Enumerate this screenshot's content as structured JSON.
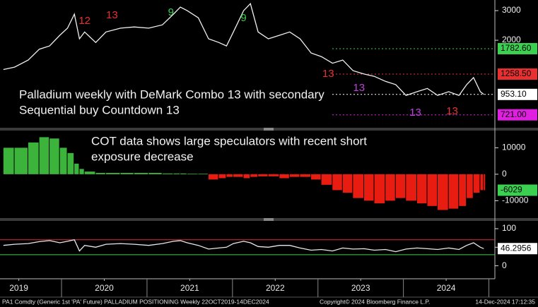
{
  "chart_data": [
    {
      "type": "line",
      "log_scale": true,
      "color": "#f0f0f0",
      "notes": [
        "Palladium weekly with DeMark Combo 13 with secondary",
        "Sequential buy Countdown 13"
      ],
      "x": [
        2019.32,
        2019.45,
        2019.61,
        2019.74,
        2019.86,
        2019.98,
        2020.07,
        2020.15,
        2020.21,
        2020.27,
        2020.4,
        2020.52,
        2020.69,
        2020.85,
        2021.02,
        2021.18,
        2021.31,
        2021.39,
        2021.47,
        2021.6,
        2021.72,
        2021.84,
        2021.93,
        2022.01,
        2022.13,
        2022.21,
        2022.3,
        2022.42,
        2022.55,
        2022.67,
        2022.79,
        2022.92,
        2023.04,
        2023.17,
        2023.29,
        2023.41,
        2023.54,
        2023.66,
        2023.79,
        2023.91,
        2024.03,
        2024.16,
        2024.28,
        2024.4,
        2024.53,
        2024.65,
        2024.74,
        2024.82,
        2024.9,
        2024.94
      ],
      "values": [
        1340,
        1385,
        1526,
        1770,
        1850,
        2140,
        2360,
        2860,
        2040,
        2240,
        1940,
        2240,
        2360,
        2400,
        2360,
        2470,
        2860,
        3150,
        3000,
        2720,
        2040,
        1940,
        1850,
        2240,
        3000,
        3300,
        2240,
        2040,
        2140,
        2240,
        2040,
        1680,
        1600,
        1460,
        1526,
        1320,
        1260,
        1220,
        1140,
        1090,
        940,
        990,
        1035,
        940,
        990,
        940,
        1090,
        1200,
        990,
        953.1
      ],
      "xlim": [
        2019.28,
        2025.07
      ],
      "ylim": [
        610,
        3470
      ],
      "yticks": [
        2000,
        3000
      ],
      "levels": [
        {
          "value": 1782.6,
          "label": "1782.60",
          "color": "#3cd050"
        },
        {
          "value": 1258.5,
          "label": "1258.50",
          "color": "#e83030"
        },
        {
          "value": 953.1,
          "label": "953.10",
          "color": "#ffffff"
        },
        {
          "value": 721,
          "label": "721.00",
          "color": "#e020e0"
        }
      ],
      "annotations": [
        {
          "text": "13",
          "x": 2020.59,
          "y": 2800,
          "color": "#e83030"
        },
        {
          "text": "12",
          "x": 2020.27,
          "y": 2596,
          "color": "#e83030"
        },
        {
          "text": "9",
          "x": 2021.28,
          "y": 2914,
          "color": "#3cd050"
        },
        {
          "text": "9",
          "x": 2022.13,
          "y": 2700,
          "color": "#3cd050"
        },
        {
          "text": "13",
          "x": 2023.12,
          "y": 1258,
          "color": "#e83030"
        },
        {
          "text": "13",
          "x": 2023.48,
          "y": 1038,
          "color": "#c040e0"
        },
        {
          "text": "13",
          "x": 2024.14,
          "y": 740,
          "color": "#c040e0"
        },
        {
          "text": "13",
          "x": 2024.57,
          "y": 755,
          "color": "#e83030"
        }
      ]
    },
    {
      "type": "bar",
      "pos_color": "#3cb43c",
      "neg_color": "#e81c10",
      "last_value_color": "#3cd050",
      "notes": [
        "COT data shows large speculators with recent short",
        "exposure decrease"
      ],
      "x": [
        2019.32,
        2019.45,
        2019.61,
        2019.74,
        2019.86,
        2019.98,
        2020.07,
        2020.15,
        2020.21,
        2020.27,
        2020.4,
        2020.52,
        2020.69,
        2020.85,
        2021.02,
        2021.18,
        2021.31,
        2021.39,
        2021.47,
        2021.6,
        2021.72,
        2021.84,
        2021.93,
        2022.01,
        2022.13,
        2022.21,
        2022.3,
        2022.42,
        2022.55,
        2022.67,
        2022.79,
        2022.92,
        2023.04,
        2023.17,
        2023.29,
        2023.41,
        2023.54,
        2023.66,
        2023.79,
        2023.91,
        2024.03,
        2024.16,
        2024.28,
        2024.4,
        2024.53,
        2024.65,
        2024.74,
        2024.82,
        2024.9,
        2024.94
      ],
      "values": [
        10000,
        10000,
        12000,
        14000,
        13500,
        10000,
        8000,
        4000,
        2000,
        1000,
        500,
        500,
        500,
        500,
        500,
        300,
        300,
        300,
        200,
        200,
        -2000,
        -1500,
        -1000,
        -1000,
        -1500,
        -1000,
        -800,
        -800,
        -1500,
        -1000,
        -1000,
        -2000,
        -4000,
        -6000,
        -7000,
        -9000,
        -10000,
        -11000,
        -10000,
        -9000,
        -10000,
        -11000,
        -12000,
        -13500,
        -13000,
        -12000,
        -9000,
        -7000,
        -6000,
        -6029
      ],
      "xlim": [
        2019.28,
        2025.07
      ],
      "ylim": [
        -16300,
        16500
      ],
      "yticks": [
        10000,
        0,
        -10000
      ]
    },
    {
      "type": "line",
      "color": "#e8e8e8",
      "last_value_color": "#ffffff",
      "x": [
        2019.32,
        2019.45,
        2019.61,
        2019.74,
        2019.86,
        2019.98,
        2020.07,
        2020.15,
        2020.21,
        2020.27,
        2020.4,
        2020.52,
        2020.69,
        2020.85,
        2021.02,
        2021.18,
        2021.31,
        2021.39,
        2021.47,
        2021.6,
        2021.72,
        2021.84,
        2021.93,
        2022.01,
        2022.13,
        2022.21,
        2022.3,
        2022.42,
        2022.55,
        2022.67,
        2022.79,
        2022.92,
        2023.04,
        2023.17,
        2023.29,
        2023.41,
        2023.54,
        2023.66,
        2023.79,
        2023.91,
        2024.03,
        2024.16,
        2024.28,
        2024.4,
        2024.53,
        2024.65,
        2024.74,
        2024.82,
        2024.9,
        2024.94
      ],
      "values": [
        55,
        58,
        60,
        65,
        68,
        62,
        66,
        70,
        40,
        55,
        50,
        58,
        60,
        58,
        55,
        60,
        66,
        68,
        62,
        55,
        45,
        48,
        50,
        60,
        66,
        62,
        52,
        50,
        55,
        55,
        48,
        42,
        44,
        40,
        48,
        45,
        46,
        42,
        44,
        38,
        45,
        48,
        46,
        44,
        48,
        44,
        55,
        62,
        50,
        46.2956
      ],
      "xlim": [
        2019.28,
        2025.07
      ],
      "ylim": [
        -35,
        121
      ],
      "yticks": [
        100,
        50,
        0
      ],
      "reference_lines": [
        {
          "value": 70,
          "color": "#e03030"
        },
        {
          "value": 30,
          "color": "#3cd050"
        }
      ],
      "xticks": [
        {
          "value": 2019.5,
          "label": "2019"
        },
        {
          "value": 2020.5,
          "label": "2020"
        },
        {
          "value": 2021.5,
          "label": "2021"
        },
        {
          "value": 2022.5,
          "label": "2022"
        },
        {
          "value": 2023.5,
          "label": "2023"
        },
        {
          "value": 2024.5,
          "label": "2024"
        }
      ]
    }
  ],
  "footer": {
    "source": "PA1 Comdty (Generic 1st 'PA' Future) PALLADIUM POSITIONING  Weekly 22OCT2019-14DEC2024",
    "copyright": "Copyright© 2024 Bloomberg Finance L.P.",
    "timestamp": "14-Dec-2024 17:12:35"
  }
}
